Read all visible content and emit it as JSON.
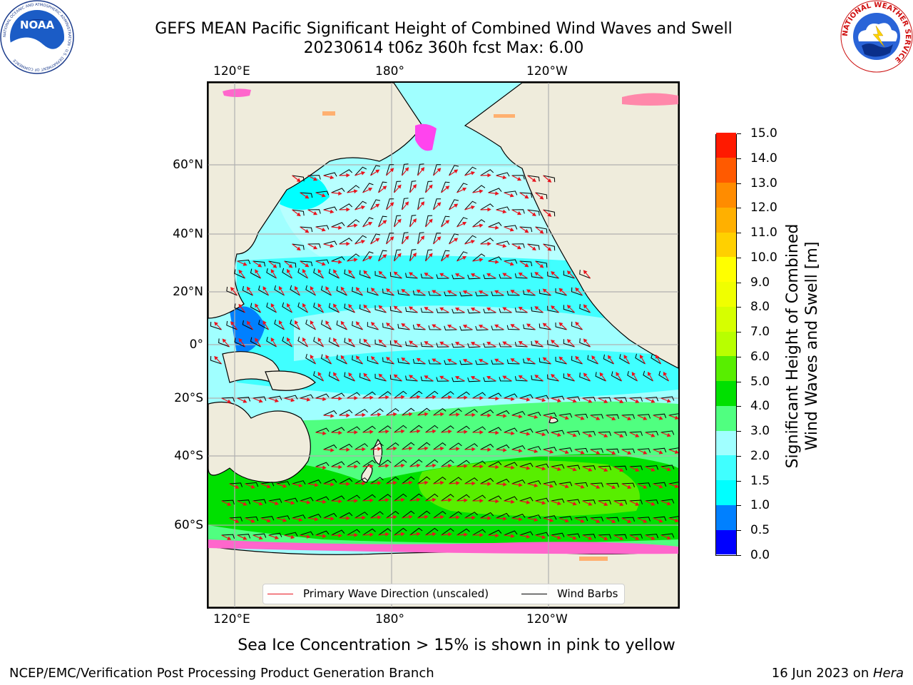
{
  "title": {
    "line1": "GEFS MEAN Pacific Significant Height of Combined Wind Waves and Swell",
    "line2": "20230614 t06z 360h fcst   Max: 6.00"
  },
  "logos": {
    "noaa": {
      "text": "NOAA",
      "ring_text": "NATIONAL OCEANIC AND ATMOSPHERIC ADMINISTRATION · U.S. DEPARTMENT OF COMMERCE"
    },
    "nws": {
      "ring_text": "NATIONAL WEATHER SERVICE"
    }
  },
  "map": {
    "lon_ticks_top": [
      "120°E",
      "180°",
      "120°W"
    ],
    "lon_ticks_bottom": [
      "120°E",
      "180°",
      "120°W"
    ],
    "lat_ticks": [
      "60°N",
      "40°N",
      "20°N",
      "0°",
      "20°S",
      "40°S",
      "60°S"
    ],
    "colors": {
      "land": "#efecdc",
      "ice_white": "#ffffff",
      "arrow": "#e8141e",
      "barb": "#000000",
      "grid": "#b0b0b0"
    }
  },
  "legend": {
    "wave_direction": "Primary Wave Direction (unscaled)",
    "wind_barbs": "Wind Barbs"
  },
  "colorbar": {
    "title_line1": "Significant Height of Combined",
    "title_line2": "Wind Waves and Swell [m]",
    "levels": [
      "0.0",
      "0.5",
      "1.0",
      "1.5",
      "2.0",
      "3.0",
      "4.0",
      "5.0",
      "6.0",
      "7.0",
      "8.0",
      "9.0",
      "10.0",
      "11.0",
      "12.0",
      "13.0",
      "14.0",
      "15.0"
    ],
    "colors": [
      "#0000ff",
      "#0080ff",
      "#00ffff",
      "#40ffff",
      "#a0ffff",
      "#50ff80",
      "#00e000",
      "#58ee00",
      "#b8ff00",
      "#d6ff00",
      "#f0ff00",
      "#ffff00",
      "#ffd000",
      "#ffb000",
      "#ff8c00",
      "#ff5a00",
      "#ff1a00"
    ]
  },
  "footer": {
    "ice_note": "Sea Ice Concentration > 15% is shown in pink to yellow",
    "credit": "NCEP/EMC/Verification Post Processing Product Generation Branch",
    "date": "16 Jun 2023 on ",
    "machine": "Hera"
  }
}
